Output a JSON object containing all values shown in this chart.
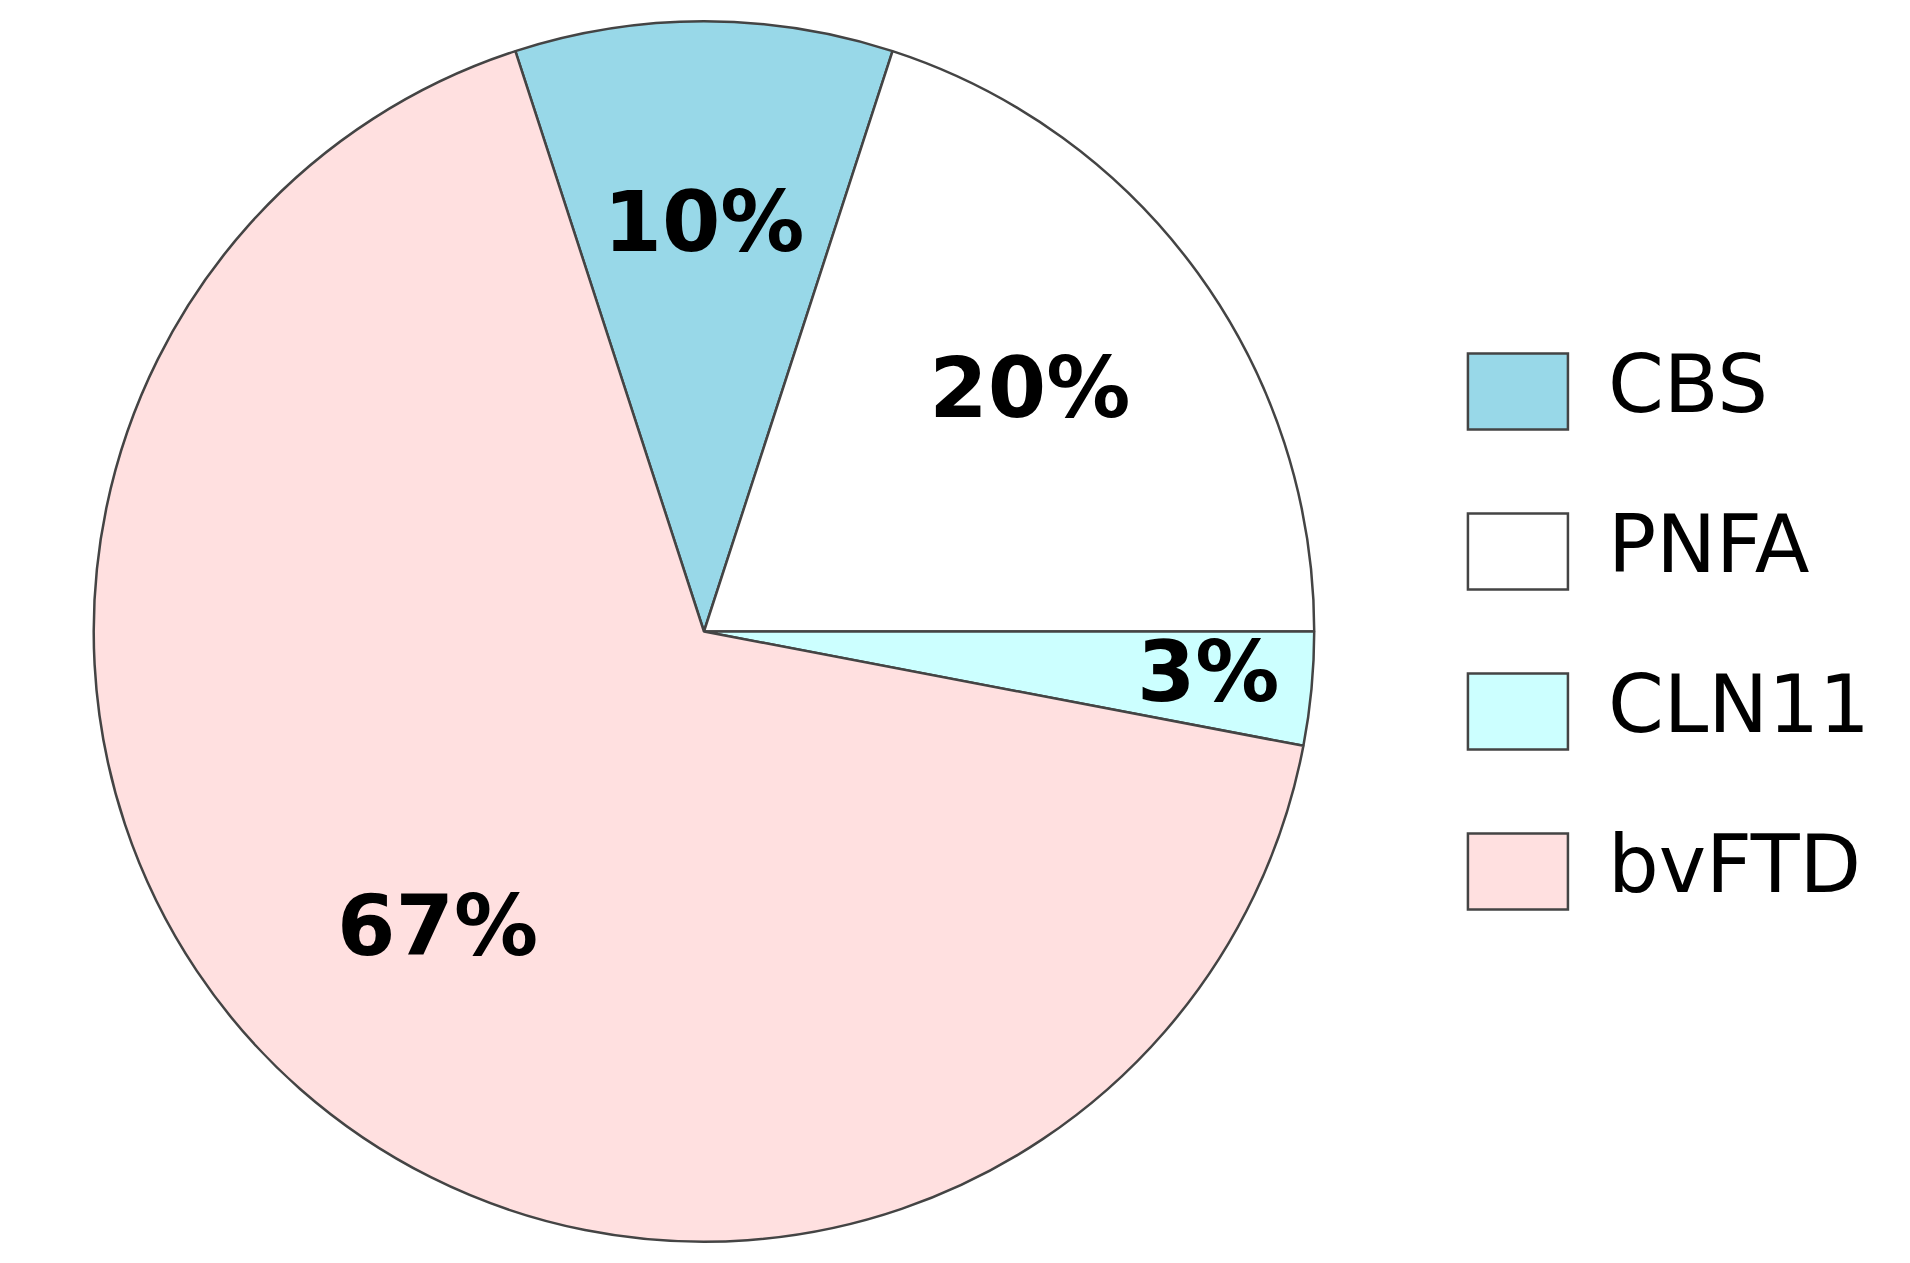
{
  "chart_data": {
    "type": "pie",
    "categories": [
      "CBS",
      "PNFA",
      "CLN11",
      "bvFTD"
    ],
    "values": [
      10,
      20,
      3,
      67
    ],
    "colors": [
      "#98d8e8",
      "#ffffff",
      "#ccffff",
      "#ffe0e0"
    ],
    "value_labels": [
      "10%",
      "20%",
      "3%",
      "67%"
    ],
    "legend": "right"
  }
}
